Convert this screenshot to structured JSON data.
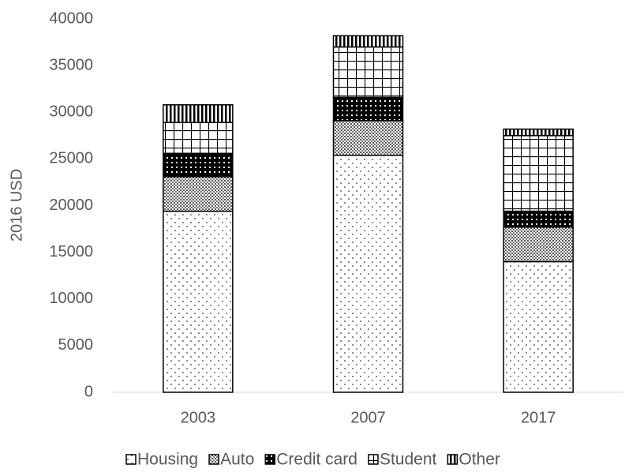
{
  "chart_data": {
    "type": "stacked-bar",
    "y_label": "2016 USD",
    "categories": [
      "2003",
      "2007",
      "2017"
    ],
    "series": [
      {
        "name": "Housing",
        "color": "#000000",
        "pattern": "dots",
        "values": [
          19400,
          25400,
          14000
        ]
      },
      {
        "name": "Auto",
        "color": "#000000",
        "pattern": "crosshatch",
        "values": [
          3700,
          3700,
          3700
        ]
      },
      {
        "name": "Credit card",
        "color": "#000000",
        "pattern": "checker",
        "values": [
          2500,
          2500,
          1700
        ]
      },
      {
        "name": "Student",
        "color": "#000000",
        "pattern": "grid",
        "values": [
          3300,
          5400,
          8100
        ]
      },
      {
        "name": "Other",
        "color": "#000000",
        "pattern": "vstripes",
        "values": [
          1900,
          1200,
          700
        ]
      }
    ],
    "ylim": [
      0,
      40000
    ],
    "yticks": [
      0,
      5000,
      10000,
      15000,
      20000,
      25000,
      30000,
      35000,
      40000
    ],
    "legend": "bottom"
  }
}
